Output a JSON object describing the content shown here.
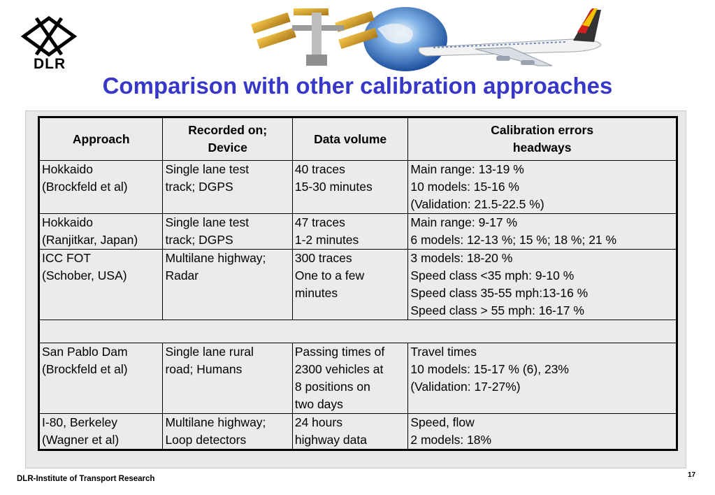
{
  "logo": {
    "text": "DLR"
  },
  "title": "Comparison with other calibration approaches",
  "table": {
    "headers": [
      [
        "Approach"
      ],
      [
        "Recorded on;",
        "Device"
      ],
      [
        "Data volume"
      ],
      [
        "Calibration errors",
        "headways"
      ]
    ],
    "rows": [
      [
        [
          "Hokkaido",
          "(Brockfeld et al)"
        ],
        [
          "Single lane test",
          "track; DGPS"
        ],
        [
          "40 traces",
          "15-30 minutes"
        ],
        [
          "Main range: 13-19 %",
          "10 models:  15-16 %",
          "(Validation:  21.5-22.5 %)"
        ]
      ],
      [
        [
          "Hokkaido",
          "(Ranjitkar, Japan)"
        ],
        [
          "Single lane test",
          "track; DGPS"
        ],
        [
          "47 traces",
          "1-2 minutes"
        ],
        [
          "Main range: 9-17 %",
          "6 models:   12-13 %; 15 %; 18 %; 21 %"
        ]
      ],
      [
        [
          "ICC FOT",
          "(Schober, USA)"
        ],
        [
          "Multilane highway;",
          "Radar"
        ],
        [
          "300 traces",
          "One to a few",
          "minutes"
        ],
        [
          "3 models:  18-20 %",
          "Speed class <35 mph:     9-10 %",
          "Speed class 35-55 mph:13-16 %",
          "Speed class > 55 mph:  16-17 %"
        ]
      ],
      [
        [
          "San Pablo Dam",
          "(Brockfeld et al)"
        ],
        [
          "Single lane rural",
          "road; Humans"
        ],
        [
          "Passing times of",
          "2300 vehicles at",
          "8 positions on",
          "two days"
        ],
        [
          "Travel times",
          "10 models: 15-17 % (6), 23%",
          "(Validation:   17-27%)"
        ]
      ],
      [
        [
          "I-80, Berkeley",
          "(Wagner et al)"
        ],
        [
          "Multilane highway;",
          "Loop detectors"
        ],
        [
          "24 hours",
          "highway data"
        ],
        [
          "Speed, flow",
          "2 models: 18%"
        ]
      ]
    ]
  },
  "footer": "DLR-Institute of Transport Research",
  "page_number": "17",
  "colors": {
    "title": "#3737c8",
    "table_bg": "#ebebeb",
    "frame_bg": "#e8e8e8"
  },
  "icons": {
    "logo": "dlr-cross-logo",
    "banner": "space-station-globe-airplane-illustration"
  }
}
